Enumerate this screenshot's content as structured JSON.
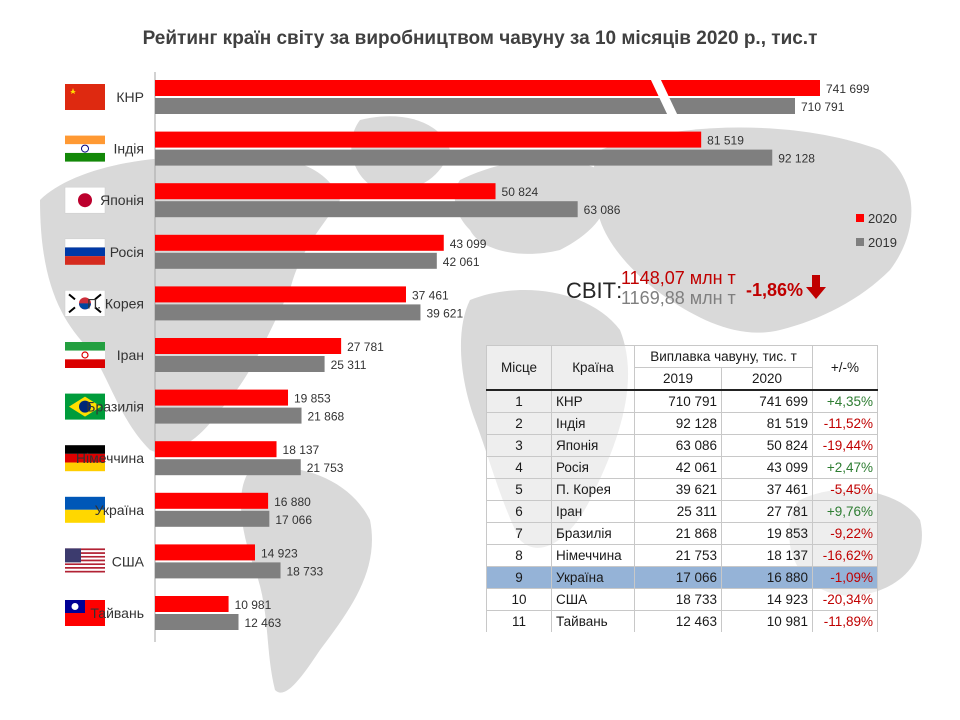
{
  "title": "Рейтинг країн світу за виробництвом чавуну за 10 місяців 2020 р., тис.т",
  "colors": {
    "y2020": "#ff0000",
    "y2019": "#7f7f7f",
    "negative": "#c00000",
    "positive": "#2e7d32",
    "highlight": "#95b3d7"
  },
  "legend": {
    "y2020": "2020",
    "y2019": "2019"
  },
  "world": {
    "label": "СВІТ:",
    "value_2020": "1148,07 млн т",
    "value_2019": "1169,88 млн т",
    "change": "-1,86%",
    "arrow_icon": "arrow-down-icon"
  },
  "chart_data": {
    "type": "bar",
    "orientation": "horizontal",
    "title": "Рейтинг країн світу за виробництвом чавуну за 10 місяців 2020 р., тис.т",
    "categories": [
      "КНР",
      "Індія",
      "Японія",
      "Росія",
      "П. Корея",
      "Іран",
      "Бразилія",
      "Німеччина",
      "Україна",
      "США",
      "Тайвань"
    ],
    "flag_icons": [
      "china-flag-icon",
      "india-flag-icon",
      "japan-flag-icon",
      "russia-flag-icon",
      "south-korea-flag-icon",
      "iran-flag-icon",
      "brazil-flag-icon",
      "germany-flag-icon",
      "ukraine-flag-icon",
      "usa-flag-icon",
      "taiwan-flag-icon"
    ],
    "series": [
      {
        "name": "2020",
        "values": [
          741699,
          81519,
          50824,
          43099,
          37461,
          27781,
          19853,
          18137,
          16880,
          14923,
          10981
        ],
        "labels": [
          "741 699",
          "81 519",
          "50 824",
          "43 099",
          "37 461",
          "27 781",
          "19 853",
          "18 137",
          "16 880",
          "14 923",
          "10 981"
        ]
      },
      {
        "name": "2019",
        "values": [
          710791,
          92128,
          63086,
          42061,
          39621,
          25311,
          21868,
          21753,
          17066,
          18733,
          12463
        ],
        "labels": [
          "710 791",
          "92 128",
          "63 086",
          "42 061",
          "39 621",
          "25 311",
          "21 868",
          "21 753",
          "17 066",
          "18 733",
          "12 463"
        ]
      }
    ],
    "axis_break": true,
    "xlim": [
      0,
      100000
    ],
    "legend_position": "right",
    "grid": false
  },
  "table": {
    "headers": {
      "place": "Місце",
      "country": "Країна",
      "production": "Виплавка чавуну, тис. т",
      "y2019": "2019",
      "y2020": "2020",
      "change": "+/-%"
    },
    "rows": [
      {
        "place": "1",
        "country": "КНР",
        "v2019": "710 791",
        "v2020": "741 699",
        "change": "+4,35%",
        "trend": "pos"
      },
      {
        "place": "2",
        "country": "Індія",
        "v2019": "92 128",
        "v2020": "81 519",
        "change": "-11,52%",
        "trend": "neg"
      },
      {
        "place": "3",
        "country": "Японія",
        "v2019": "63 086",
        "v2020": "50 824",
        "change": "-19,44%",
        "trend": "neg"
      },
      {
        "place": "4",
        "country": "Росія",
        "v2019": "42 061",
        "v2020": "43 099",
        "change": "+2,47%",
        "trend": "pos"
      },
      {
        "place": "5",
        "country": "П. Корея",
        "v2019": "39 621",
        "v2020": "37 461",
        "change": "-5,45%",
        "trend": "neg"
      },
      {
        "place": "6",
        "country": "Іран",
        "v2019": "25 311",
        "v2020": "27 781",
        "change": "+9,76%",
        "trend": "pos"
      },
      {
        "place": "7",
        "country": "Бразилія",
        "v2019": "21 868",
        "v2020": "19 853",
        "change": "-9,22%",
        "trend": "neg"
      },
      {
        "place": "8",
        "country": "Німеччина",
        "v2019": "21 753",
        "v2020": "18 137",
        "change": "-16,62%",
        "trend": "neg"
      },
      {
        "place": "9",
        "country": "Україна",
        "v2019": "17 066",
        "v2020": "16 880",
        "change": "-1,09%",
        "trend": "neg",
        "highlight": true
      },
      {
        "place": "10",
        "country": "США",
        "v2019": "18 733",
        "v2020": "14 923",
        "change": "-20,34%",
        "trend": "neg"
      },
      {
        "place": "11",
        "country": "Тайвань",
        "v2019": "12 463",
        "v2020": "10 981",
        "change": "-11,89%",
        "trend": "neg"
      }
    ]
  }
}
